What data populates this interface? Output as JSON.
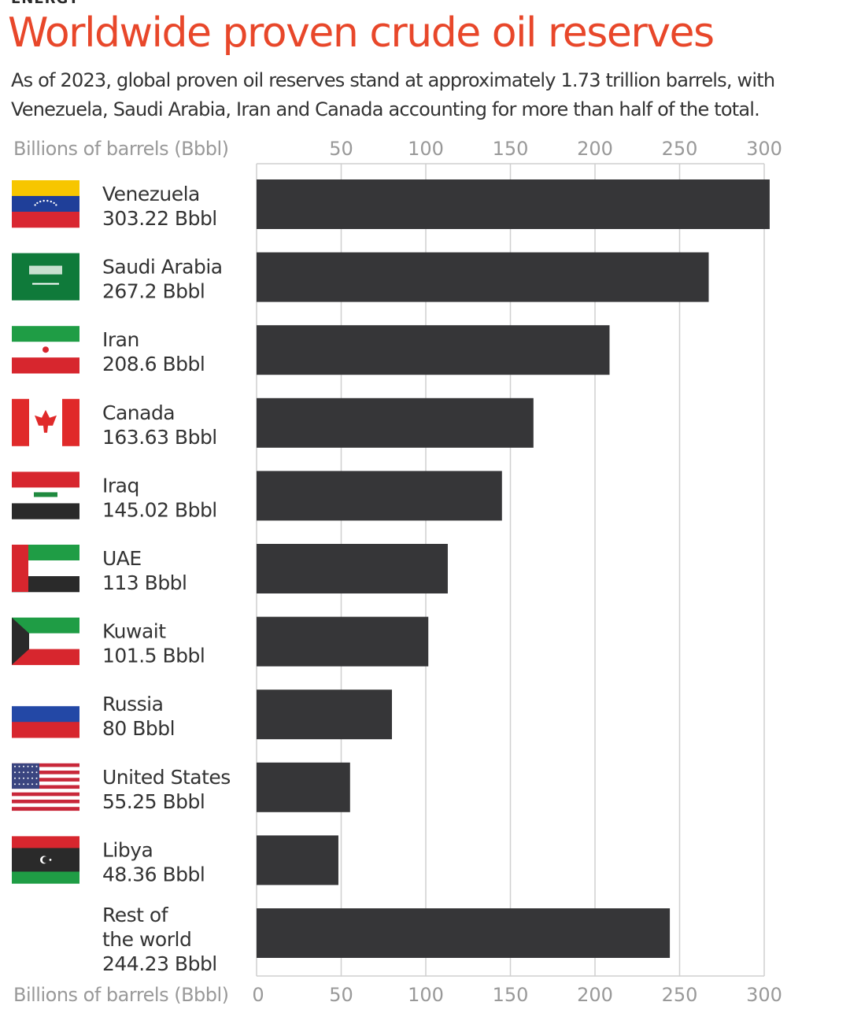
{
  "header": {
    "kicker": "ENERGY",
    "title": "Worldwide proven crude oil reserves",
    "subtitle": "As of 2023, global proven oil reserves stand at approximately 1.73 trillion barrels, with Venezuela, Saudi Arabia, Iran and Canada accounting for more than half of the total."
  },
  "colors": {
    "title": "#e8472a",
    "bar": "#363638",
    "grid": "#cfcfcf",
    "axis_text": "#999999"
  },
  "chart_data": {
    "type": "bar",
    "orientation": "horizontal",
    "xlabel": "Billions of barrels (Bbbl)",
    "xlim": [
      0,
      300
    ],
    "ticks_top": [
      "50",
      "100",
      "150",
      "200",
      "250",
      "300"
    ],
    "ticks_bottom": [
      "0",
      "50",
      "100",
      "150",
      "200",
      "250",
      "300"
    ],
    "tick_values_top": [
      50,
      100,
      150,
      200,
      250,
      300
    ],
    "tick_values_bottom": [
      0,
      50,
      100,
      150,
      200,
      250,
      300
    ],
    "grid": true,
    "categories": [
      {
        "name_lines": [
          "Venezuela"
        ],
        "value_label": "303.22 Bbbl",
        "value": 303.22,
        "flag_icon": "venezuela-flag-icon"
      },
      {
        "name_lines": [
          "Saudi Arabia"
        ],
        "value_label": "267.2 Bbbl",
        "value": 267.2,
        "flag_icon": "saudi-arabia-flag-icon"
      },
      {
        "name_lines": [
          "Iran"
        ],
        "value_label": "208.6 Bbbl",
        "value": 208.6,
        "flag_icon": "iran-flag-icon"
      },
      {
        "name_lines": [
          "Canada"
        ],
        "value_label": "163.63 Bbbl",
        "value": 163.63,
        "flag_icon": "canada-flag-icon"
      },
      {
        "name_lines": [
          "Iraq"
        ],
        "value_label": " 145.02 Bbbl",
        "value": 145.02,
        "flag_icon": "iraq-flag-icon"
      },
      {
        "name_lines": [
          "UAE"
        ],
        "value_label": "113 Bbbl",
        "value": 113,
        "flag_icon": "uae-flag-icon"
      },
      {
        "name_lines": [
          "Kuwait"
        ],
        "value_label": "101.5 Bbbl",
        "value": 101.5,
        "flag_icon": "kuwait-flag-icon"
      },
      {
        "name_lines": [
          "Russia"
        ],
        "value_label": "80 Bbbl",
        "value": 80,
        "flag_icon": "russia-flag-icon"
      },
      {
        "name_lines": [
          "United States"
        ],
        "value_label": "55.25 Bbbl",
        "value": 55.25,
        "flag_icon": "united-states-flag-icon"
      },
      {
        "name_lines": [
          "Libya"
        ],
        "value_label": "48.36 Bbbl",
        "value": 48.36,
        "flag_icon": "libya-flag-icon"
      },
      {
        "name_lines": [
          "Rest of",
          "the world"
        ],
        "value_label": "244.23 Bbbl",
        "value": 244.23,
        "flag_icon": ""
      }
    ]
  }
}
